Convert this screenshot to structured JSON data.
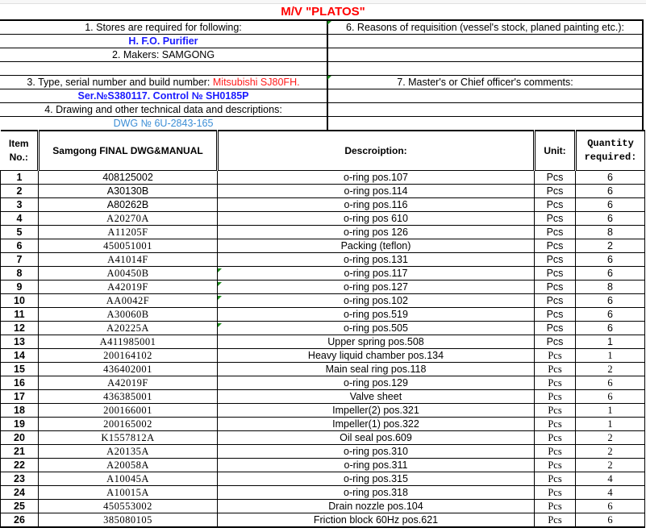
{
  "title": "M/V \"PLATOS\"",
  "left_box": {
    "stores_label": "1. Stores are required for following:",
    "stores_value": "H. F.O. Purifier",
    "makers": "2. Makers: SAMGONG",
    "type_label": "3. Type, serial number and build number: ",
    "type_value": "Mitsubishi SJ80FH.",
    "serial": "Ser.№S380117. Control № SH0185P",
    "drawing_label": "4. Drawing and other technical data and descriptions:",
    "drawing_value": "DWG № 6U-2843-165"
  },
  "right_box": {
    "reasons_label": "6. Reasons of requisition (vessel's stock, planed painting etc.):",
    "comments_label": "7. Master's or Chief officer's comments:"
  },
  "colors": {
    "title": "#ff0000",
    "highlight_blue": "#1a1aff",
    "type_red": "#ff1a1a",
    "drawing_blue": "#3c8ed6",
    "comment_marker": "#1a8a1a"
  },
  "table": {
    "headers": {
      "item": "Item No.:",
      "part": "Samgong FINAL DWG&MANUAL",
      "description": "Descroiption:",
      "unit": "Unit:",
      "quantity": "Quantity required:"
    },
    "rows": [
      {
        "item": "1",
        "part": "408125002",
        "description": "o-ring pos.107",
        "unit": "Pcs",
        "qty": "6"
      },
      {
        "item": "2",
        "part": "A30130B",
        "description": "o-ring  pos.114",
        "unit": "Pcs",
        "qty": "6"
      },
      {
        "item": "3",
        "part": "A80262B",
        "description": "o-ring  pos.116",
        "unit": "Pcs",
        "qty": "6"
      },
      {
        "item": "4",
        "part": "A20270A",
        "description": "o-ring pos 610",
        "unit": "Pcs",
        "qty": "6"
      },
      {
        "item": "5",
        "part": "A11205F",
        "description": "o-ring  pos 126",
        "unit": "Pcs",
        "qty": "8"
      },
      {
        "item": "6",
        "part": "450051001",
        "description": "Packing (teflon)",
        "unit": "Pcs",
        "qty": "2"
      },
      {
        "item": "7",
        "part": "A41014F",
        "description": "o-ring pos.131",
        "unit": "Pcs",
        "qty": "6"
      },
      {
        "item": "8",
        "part": "A00450B",
        "description": "o-ring pos.117",
        "unit": "Pcs",
        "qty": "6"
      },
      {
        "item": "9",
        "part": "A42019F",
        "description": "o-ring pos.127",
        "unit": "Pcs",
        "qty": "8"
      },
      {
        "item": "10",
        "part": "AA0042F",
        "description": "o-ring pos.102",
        "unit": "Pcs",
        "qty": "6"
      },
      {
        "item": "11",
        "part": "A30060B",
        "description": "o-ring  pos.519",
        "unit": "Pcs",
        "qty": "6"
      },
      {
        "item": "12",
        "part": "A20225A",
        "description": "o-ring pos.505",
        "unit": "Pcs",
        "qty": "6"
      },
      {
        "item": "13",
        "part": "A411985001",
        "description": "Upper spring pos.508",
        "unit": "Pcs",
        "qty": "1"
      },
      {
        "item": "14",
        "part": "200164102",
        "description": "Heavy liquid chamber pos.134",
        "unit": "Pcs",
        "qty": "1"
      },
      {
        "item": "15",
        "part": "436402001",
        "description": "Main seal ring pos.118",
        "unit": "Pcs",
        "qty": "2"
      },
      {
        "item": "16",
        "part": "A42019F",
        "description": "o-ring pos.129",
        "unit": "Pcs",
        "qty": "6"
      },
      {
        "item": "17",
        "part": "436385001",
        "description": "Valve sheet",
        "unit": "Pcs",
        "qty": "6"
      },
      {
        "item": "18",
        "part": "200166001",
        "description": "Impeller(2) pos.321",
        "unit": "Pcs",
        "qty": "1"
      },
      {
        "item": "19",
        "part": "200165002",
        "description": "Impeller(1) pos.322",
        "unit": "Pcs",
        "qty": "1"
      },
      {
        "item": "20",
        "part": "K1557812A",
        "description": "Oil seal pos.609",
        "unit": "Pcs",
        "qty": "2"
      },
      {
        "item": "21",
        "part": "A20135A",
        "description": "o-ring pos.310",
        "unit": "Pcs",
        "qty": "2"
      },
      {
        "item": "22",
        "part": "A20058A",
        "description": "o-ring pos.311",
        "unit": "Pcs",
        "qty": "2"
      },
      {
        "item": "23",
        "part": "A10045A",
        "description": "o-ring pos.315",
        "unit": "Pcs",
        "qty": "4"
      },
      {
        "item": "24",
        "part": "A10015A",
        "description": "o-ring pos.318",
        "unit": "Pcs",
        "qty": "4"
      },
      {
        "item": "25",
        "part": "450553002",
        "description": "Drain nozzle pos.104",
        "unit": "Pcs",
        "qty": "6"
      },
      {
        "item": "26",
        "part": "385080105",
        "description": "Friction block 60Hz pos.621",
        "unit": "Pcs",
        "qty": "6"
      }
    ]
  }
}
